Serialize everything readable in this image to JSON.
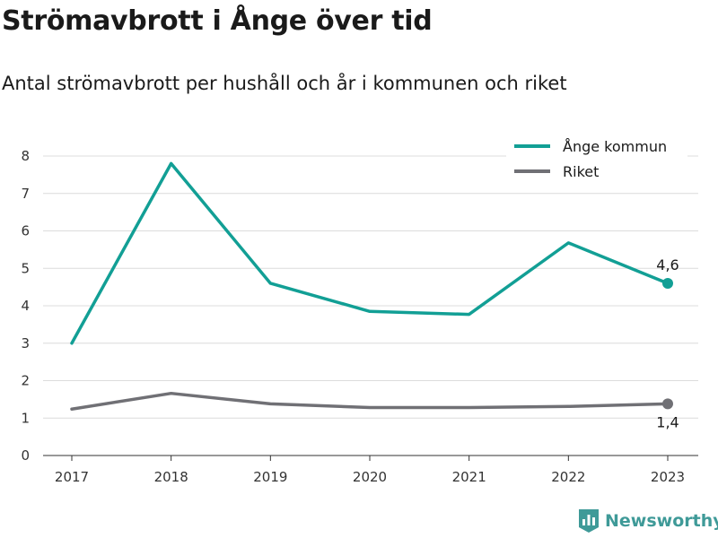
{
  "title": "Strömavbrott i Ånge över tid",
  "subtitle": "Antal strömavbrott per hushåll och år i kommunen och riket",
  "brand": {
    "name": "Newsworthy",
    "icon": "newsworthy-logo-icon",
    "color": "#3f9a98"
  },
  "chart_data": {
    "type": "line",
    "x": [
      "2017",
      "2018",
      "2019",
      "2020",
      "2021",
      "2022",
      "2023"
    ],
    "series": [
      {
        "name": "Ånge kommun",
        "color": "#129f95",
        "values": [
          3.0,
          7.8,
          4.6,
          3.85,
          3.77,
          5.68,
          4.6
        ],
        "end_label": "4,6"
      },
      {
        "name": "Riket",
        "color": "#707075",
        "values": [
          1.24,
          1.66,
          1.38,
          1.28,
          1.28,
          1.31,
          1.38
        ],
        "end_label": "1,4"
      }
    ],
    "yticks": [
      "0",
      "1",
      "2",
      "3",
      "4",
      "5",
      "6",
      "7",
      "8"
    ],
    "ylim": [
      0,
      8
    ],
    "grid": true,
    "legend_position": "top-right"
  }
}
